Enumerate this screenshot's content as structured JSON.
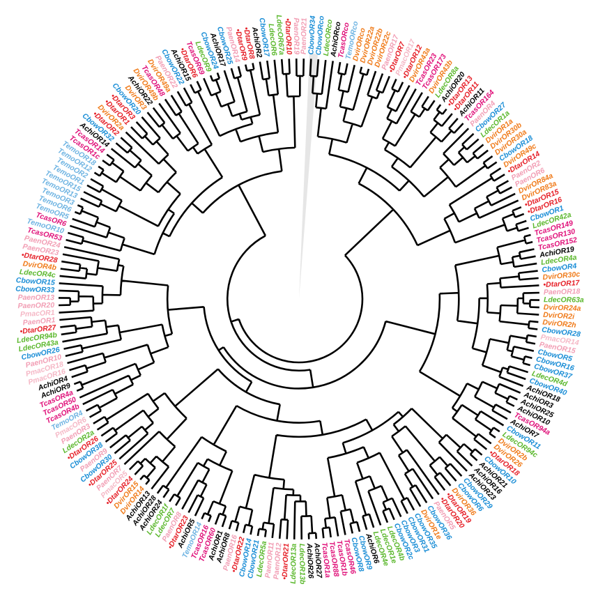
{
  "tree": {
    "leaves": [
      {
        "label": "CbowOR34",
        "color": "#1b8ed6"
      },
      {
        "label": "CbowORco",
        "color": "#1b8ed6"
      },
      {
        "label": "LdecORco",
        "color": "#5cb82e"
      },
      {
        "label": "AchiORco",
        "color": "#000000"
      },
      {
        "label": "TcasORco",
        "color": "#e0127a"
      },
      {
        "label": "TemoORco",
        "color": "#6fb4e2"
      },
      {
        "label": "DvirORco",
        "color": "#f07b1a"
      },
      {
        "label": "DvirOR22a",
        "color": "#f07b1a"
      },
      {
        "label": "DvirOR22b",
        "color": "#f07b1a"
      },
      {
        "label": "DvirOR22c",
        "color": "#f07b1a"
      },
      {
        "label": "PaenOR17",
        "color": "#f29fb5"
      },
      {
        "label": "•DtarOR7",
        "color": "#e62129"
      },
      {
        "label": "PmacOR17",
        "color": "#f5b8c6"
      },
      {
        "label": "•DtarOR12",
        "color": "#e62129"
      },
      {
        "label": "DvirOR43a",
        "color": "#f07b1a"
      },
      {
        "label": "TcasOR23",
        "color": "#e0127a"
      },
      {
        "label": "TcasOR173",
        "color": "#e0127a"
      },
      {
        "label": "DvirOR43b",
        "color": "#f07b1a"
      },
      {
        "label": "LdecOR8a",
        "color": "#5cb82e"
      },
      {
        "label": "AchiOR20",
        "color": "#000000"
      },
      {
        "label": "•DtarOR13",
        "color": "#e62129"
      },
      {
        "label": "•DtarOR11",
        "color": "#e62129"
      },
      {
        "label": "AchiOR11",
        "color": "#000000"
      },
      {
        "label": "TcasOR164",
        "color": "#e0127a"
      },
      {
        "label": "PaenOR4",
        "color": "#f29fb5"
      },
      {
        "label": "CbowOR27",
        "color": "#1b8ed6"
      },
      {
        "label": "LdecOR1a",
        "color": "#5cb82e"
      },
      {
        "label": "DvirOR1a",
        "color": "#f07b1a"
      },
      {
        "label": "DvirOR30b",
        "color": "#f07b1a"
      },
      {
        "label": "DvirOR30a",
        "color": "#f07b1a"
      },
      {
        "label": "CbowOR18",
        "color": "#1b8ed6"
      },
      {
        "label": "DvirOR49c",
        "color": "#f07b1a"
      },
      {
        "label": "•DtarOR14",
        "color": "#e62129"
      },
      {
        "label": "PaenOR2",
        "color": "#f29fb5"
      },
      {
        "label": "PaenOR6",
        "color": "#f29fb5"
      },
      {
        "label": "DvirOR84a",
        "color": "#f07b1a"
      },
      {
        "label": "DvirOR83a",
        "color": "#f07b1a"
      },
      {
        "label": "•DtarOR15",
        "color": "#e62129"
      },
      {
        "label": "•DtarOR16",
        "color": "#e62129"
      },
      {
        "label": "CbowOR1",
        "color": "#1b8ed6"
      },
      {
        "label": "LdecOR42a",
        "color": "#5cb82e"
      },
      {
        "label": "TcasOR149",
        "color": "#e0127a"
      },
      {
        "label": "TcasOR130",
        "color": "#e0127a"
      },
      {
        "label": "TcasOR152",
        "color": "#e0127a"
      },
      {
        "label": "AchiOR19",
        "color": "#000000"
      },
      {
        "label": "LdecOR4a",
        "color": "#5cb82e"
      },
      {
        "label": "CbowOR4",
        "color": "#1b8ed6"
      },
      {
        "label": "DvirOR30c",
        "color": "#f07b1a"
      },
      {
        "label": "•DtarOR17",
        "color": "#e62129"
      },
      {
        "label": "PaenOR18",
        "color": "#f29fb5"
      },
      {
        "label": "LdecOR63a",
        "color": "#5cb82e"
      },
      {
        "label": "DvirOR24a",
        "color": "#f07b1a"
      },
      {
        "label": "DvirOR2i",
        "color": "#f07b1a"
      },
      {
        "label": "DvirOR2h",
        "color": "#f07b1a"
      },
      {
        "label": "CbowOR28",
        "color": "#1b8ed6"
      },
      {
        "label": "PmacOR14",
        "color": "#f5b8c6"
      },
      {
        "label": "PaenOR15",
        "color": "#f29fb5"
      },
      {
        "label": "CbowOR5",
        "color": "#1b8ed6"
      },
      {
        "label": "CbowOR16",
        "color": "#1b8ed6"
      },
      {
        "label": "CbowOR37",
        "color": "#1b8ed6"
      },
      {
        "label": "LdecOR4d",
        "color": "#5cb82e"
      },
      {
        "label": "CbowOR40",
        "color": "#1b8ed6"
      },
      {
        "label": "AchiOR18",
        "color": "#000000"
      },
      {
        "label": "AchiOR3",
        "color": "#000000"
      },
      {
        "label": "AchiOR25",
        "color": "#000000"
      },
      {
        "label": "AchiOR10",
        "color": "#000000"
      },
      {
        "label": "TcasOR94a",
        "color": "#e0127a"
      },
      {
        "label": "AchiOR7",
        "color": "#000000"
      },
      {
        "label": "CbowOR11",
        "color": "#1b8ed6"
      },
      {
        "label": "LdecOR94c",
        "color": "#5cb82e"
      },
      {
        "label": "DvirOR2b",
        "color": "#f07b1a"
      },
      {
        "label": "DvirOR26",
        "color": "#f07b1a"
      },
      {
        "label": "•DtarOR18",
        "color": "#e62129"
      },
      {
        "label": "CbowOR10",
        "color": "#1b8ed6"
      },
      {
        "label": "AchiOR21",
        "color": "#000000"
      },
      {
        "label": "AchiOR16",
        "color": "#000000"
      },
      {
        "label": "AchiOR23",
        "color": "#000000"
      },
      {
        "label": "CbowOR29",
        "color": "#1b8ed6"
      },
      {
        "label": "CbowOR6",
        "color": "#1b8ed6"
      },
      {
        "label": "DvirOR36",
        "color": "#f07b1a"
      },
      {
        "label": "•DtarOR19",
        "color": "#e62129"
      },
      {
        "label": "•DtarOR20",
        "color": "#e62129"
      },
      {
        "label": "PaenOR5",
        "color": "#f29fb5"
      },
      {
        "label": "CbowOR36",
        "color": "#1b8ed6"
      },
      {
        "label": "DvirOR1e",
        "color": "#f07b1a"
      },
      {
        "label": "CbowOR35",
        "color": "#1b8ed6"
      },
      {
        "label": "CbowOR31",
        "color": "#1b8ed6"
      },
      {
        "label": "CbowOR3",
        "color": "#1b8ed6"
      },
      {
        "label": "CbowOR2c",
        "color": "#1b8ed6"
      },
      {
        "label": "LdecOR4b",
        "color": "#5cb82e"
      },
      {
        "label": "LdecOR1e",
        "color": "#5cb82e"
      },
      {
        "label": "LdecOR4e",
        "color": "#5cb82e"
      },
      {
        "label": "AchiOR6",
        "color": "#000000"
      },
      {
        "label": "CbowOR9",
        "color": "#1b8ed6"
      },
      {
        "label": "CbowOR8",
        "color": "#1b8ed6"
      },
      {
        "label": "TcasOR46",
        "color": "#e0127a"
      },
      {
        "label": "TcasOR1b",
        "color": "#e0127a"
      },
      {
        "label": "TcasOR88",
        "color": "#e0127a"
      },
      {
        "label": "TcasOR1a",
        "color": "#e0127a"
      },
      {
        "label": "AchiOR27",
        "color": "#000000"
      },
      {
        "label": "AchiOR26",
        "color": "#000000"
      },
      {
        "label": "LdecOR13b",
        "color": "#5cb82e"
      },
      {
        "label": "LdecOR13a",
        "color": "#5cb82e"
      },
      {
        "label": "•DtarOR21",
        "color": "#e62129"
      },
      {
        "label": "PaenOR12",
        "color": "#f29fb5"
      },
      {
        "label": "PaenOR11",
        "color": "#f29fb5"
      },
      {
        "label": "LdecOR5a",
        "color": "#5cb82e"
      },
      {
        "label": "CbowOR21",
        "color": "#1b8ed6"
      },
      {
        "label": "CbowOR14",
        "color": "#1b8ed6"
      },
      {
        "label": "•DtarOR22",
        "color": "#e62129"
      },
      {
        "label": "PaenOR16",
        "color": "#f29fb5"
      },
      {
        "label": "AchiOR8",
        "color": "#000000"
      },
      {
        "label": "AchiOR1",
        "color": "#000000"
      },
      {
        "label": "TcasOR60",
        "color": "#e0127a"
      },
      {
        "label": "TcasOR16",
        "color": "#e0127a"
      },
      {
        "label": "TemoOR14",
        "color": "#6fb4e2"
      },
      {
        "label": "AchiOR5",
        "color": "#000000"
      },
      {
        "label": "•DtarOR23",
        "color": "#e62129"
      },
      {
        "label": "PaenOR8",
        "color": "#f29fb5"
      },
      {
        "label": "LdecOR7",
        "color": "#5cb82e"
      },
      {
        "label": "LdecOR1f",
        "color": "#5cb82e"
      },
      {
        "label": "AchiOR24",
        "color": "#000000"
      },
      {
        "label": "AchiOR28",
        "color": "#000000"
      },
      {
        "label": "AchiOR13",
        "color": "#000000"
      },
      {
        "label": "DvirOR14",
        "color": "#f07b1a"
      },
      {
        "label": "DvirOR15",
        "color": "#f07b1a"
      },
      {
        "label": "•DtarOR24",
        "color": "#e62129"
      },
      {
        "label": "PmacOR5",
        "color": "#f5b8c6"
      },
      {
        "label": "PaenOR7",
        "color": "#f29fb5"
      },
      {
        "label": "•DtarOR25",
        "color": "#e62129"
      },
      {
        "label": "CbowOR30",
        "color": "#1b8ed6"
      },
      {
        "label": "PaenOR9",
        "color": "#f29fb5"
      },
      {
        "label": "CbowOR38",
        "color": "#1b8ed6"
      },
      {
        "label": "•DtarOR26",
        "color": "#e62129"
      },
      {
        "label": "LdecOR2a",
        "color": "#5cb82e"
      },
      {
        "label": "PaenOR3",
        "color": "#f29fb5"
      },
      {
        "label": "PmacOR6",
        "color": "#f5b8c6"
      },
      {
        "label": "TemoOR4",
        "color": "#6fb4e2"
      },
      {
        "label": "TcasOR4b",
        "color": "#e0127a"
      },
      {
        "label": "TcasOR50",
        "color": "#e0127a"
      },
      {
        "label": "TcasOR4a",
        "color": "#e0127a"
      },
      {
        "label": "AchiOR9",
        "color": "#000000"
      },
      {
        "label": "AchiOR4",
        "color": "#000000"
      },
      {
        "label": "PmacOR16",
        "color": "#f5b8c6"
      },
      {
        "label": "PmacOR18",
        "color": "#f5b8c6"
      },
      {
        "label": "PaenOR10",
        "color": "#f29fb5"
      },
      {
        "label": "CbowOR26",
        "color": "#1b8ed6"
      },
      {
        "label": "LdecOR43a",
        "color": "#5cb82e"
      },
      {
        "label": "LdecOR94b",
        "color": "#5cb82e"
      },
      {
        "label": "•DtarOR27",
        "color": "#e62129"
      },
      {
        "label": "PaenOR1",
        "color": "#f29fb5"
      },
      {
        "label": "PmacOR1",
        "color": "#f5b8c6"
      },
      {
        "label": "PaenOR20",
        "color": "#f29fb5"
      },
      {
        "label": "PaenOR13",
        "color": "#f29fb5"
      },
      {
        "label": "CbowOR33",
        "color": "#1b8ed6"
      },
      {
        "label": "CbowOR15",
        "color": "#1b8ed6"
      },
      {
        "label": "LdecOR4c",
        "color": "#5cb82e"
      },
      {
        "label": "DvirOR4b",
        "color": "#f07b1a"
      },
      {
        "label": "•DtarOR28",
        "color": "#e62129"
      },
      {
        "label": "PaenOR23",
        "color": "#f29fb5"
      },
      {
        "label": "PaenOR24",
        "color": "#f29fb5"
      },
      {
        "label": "TcasOR53",
        "color": "#e0127a"
      },
      {
        "label": "TemoOR10",
        "color": "#6fb4e2"
      },
      {
        "label": "TcasOR6",
        "color": "#e0127a"
      },
      {
        "label": "TemoOR5",
        "color": "#6fb4e2"
      },
      {
        "label": "TemoOR6",
        "color": "#6fb4e2"
      },
      {
        "label": "TemoOR3",
        "color": "#6fb4e2"
      },
      {
        "label": "TemoOR13",
        "color": "#6fb4e2"
      },
      {
        "label": "TemoOR15",
        "color": "#6fb4e2"
      },
      {
        "label": "TemoOR1",
        "color": "#6fb4e2"
      },
      {
        "label": "TemoOR2",
        "color": "#6fb4e2"
      },
      {
        "label": "TemoOR12",
        "color": "#6fb4e2"
      },
      {
        "label": "TemoOR18",
        "color": "#6fb4e2"
      },
      {
        "label": "TcasOR1c",
        "color": "#e0127a"
      },
      {
        "label": "TcasOR14",
        "color": "#e0127a"
      },
      {
        "label": "AchiOR14",
        "color": "#000000"
      },
      {
        "label": "CbowOR32",
        "color": "#1b8ed6"
      },
      {
        "label": "•DtarOR2",
        "color": "#e62129"
      },
      {
        "label": "DvirOR2a",
        "color": "#f07b1a"
      },
      {
        "label": "•DtarOR1",
        "color": "#e62129"
      },
      {
        "label": "•DtarOR3",
        "color": "#e62129"
      },
      {
        "label": "CbowOR20",
        "color": "#1b8ed6"
      },
      {
        "label": "DvirOR3",
        "color": "#f07b1a"
      },
      {
        "label": "AchiOR22",
        "color": "#000000"
      },
      {
        "label": "DvirOR49b",
        "color": "#f07b1a"
      },
      {
        "label": "TcasOR48",
        "color": "#e0127a"
      },
      {
        "label": "DvirOR49a",
        "color": "#f07b1a"
      },
      {
        "label": "PaenOR22",
        "color": "#f29fb5"
      },
      {
        "label": "CbowOR22",
        "color": "#1b8ed6"
      },
      {
        "label": "AchiOR15",
        "color": "#000000"
      },
      {
        "label": "•DtarOR6",
        "color": "#e62129"
      },
      {
        "label": "TcasOR69",
        "color": "#e0127a"
      },
      {
        "label": "LdecOR9",
        "color": "#5cb82e"
      },
      {
        "label": "CbowOR24",
        "color": "#1b8ed6"
      },
      {
        "label": "AchiOR17",
        "color": "#000000"
      },
      {
        "label": "CbowOR25",
        "color": "#1b8ed6"
      },
      {
        "label": "PaenOR14",
        "color": "#f29fb5"
      },
      {
        "label": "•DtarOR9",
        "color": "#e62129"
      },
      {
        "label": "•DtarOR8",
        "color": "#e62129"
      },
      {
        "label": "AchiOR2",
        "color": "#000000"
      },
      {
        "label": "CbowOR17",
        "color": "#1b8ed6"
      },
      {
        "label": "LdecOR6",
        "color": "#5cb82e"
      },
      {
        "label": "LdecOR67a",
        "color": "#5cb82e"
      },
      {
        "label": "•DtarOR10",
        "color": "#e62129"
      },
      {
        "label": "PaenOR19",
        "color": "#f29fb5"
      },
      {
        "label": "PaenOR21",
        "color": "#f29fb5"
      }
    ]
  }
}
